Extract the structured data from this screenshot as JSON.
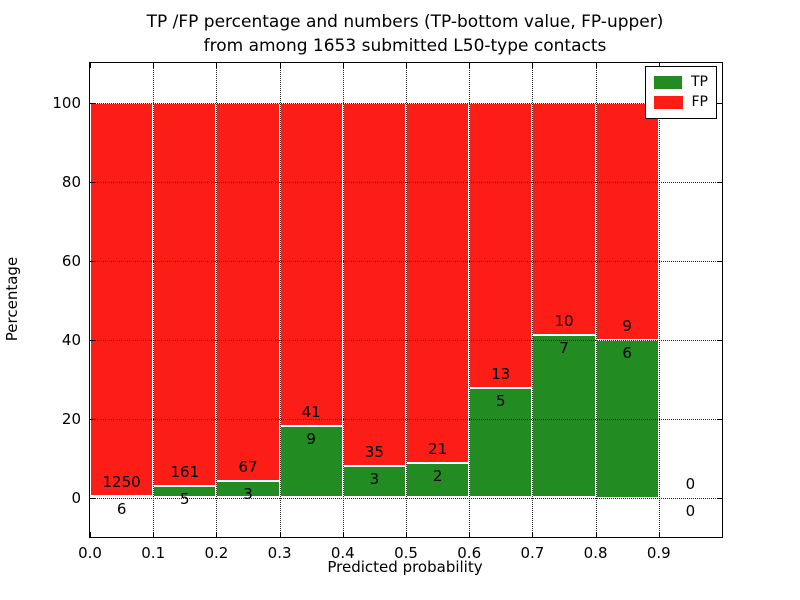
{
  "chart_data": {
    "type": "bar",
    "stacked": true,
    "title": "TP /FP percentage and numbers (TP-bottom value, FP-upper)",
    "subtitle": "from among 1653 submitted L50-type contacts",
    "xlabel": "Predicted probability",
    "ylabel": "Percentage",
    "xlim": [
      0.0,
      1.0
    ],
    "ylim": [
      -10,
      110
    ],
    "xticks": [
      "0.0",
      "0.1",
      "0.2",
      "0.3",
      "0.4",
      "0.5",
      "0.6",
      "0.7",
      "0.8",
      "0.9"
    ],
    "yticks": [
      0,
      20,
      40,
      60,
      80,
      100
    ],
    "grid": true,
    "bar_annotation_note": "FP count printed above TP/FP boundary, TP count below",
    "colors": {
      "tp": "#228B22",
      "fp": "#FC1D16",
      "grid": "#000000",
      "background": "#FFFFFF"
    },
    "legend": {
      "position": "upper-right",
      "entries": [
        {
          "label": "TP",
          "color": "#228B22"
        },
        {
          "label": "FP",
          "color": "#FC1D16"
        }
      ]
    },
    "bins": [
      {
        "x0": 0.0,
        "x1": 0.1,
        "tp": 6,
        "fp": 1250
      },
      {
        "x0": 0.1,
        "x1": 0.2,
        "tp": 5,
        "fp": 161
      },
      {
        "x0": 0.2,
        "x1": 0.3,
        "tp": 3,
        "fp": 67
      },
      {
        "x0": 0.3,
        "x1": 0.4,
        "tp": 9,
        "fp": 41
      },
      {
        "x0": 0.4,
        "x1": 0.5,
        "tp": 3,
        "fp": 35
      },
      {
        "x0": 0.5,
        "x1": 0.6,
        "tp": 2,
        "fp": 21
      },
      {
        "x0": 0.6,
        "x1": 0.7,
        "tp": 5,
        "fp": 13
      },
      {
        "x0": 0.7,
        "x1": 0.8,
        "tp": 7,
        "fp": 10
      },
      {
        "x0": 0.8,
        "x1": 0.9,
        "tp": 6,
        "fp": 9
      },
      {
        "x0": 0.9,
        "x1": 1.0,
        "tp": 0,
        "fp": 0
      }
    ]
  }
}
